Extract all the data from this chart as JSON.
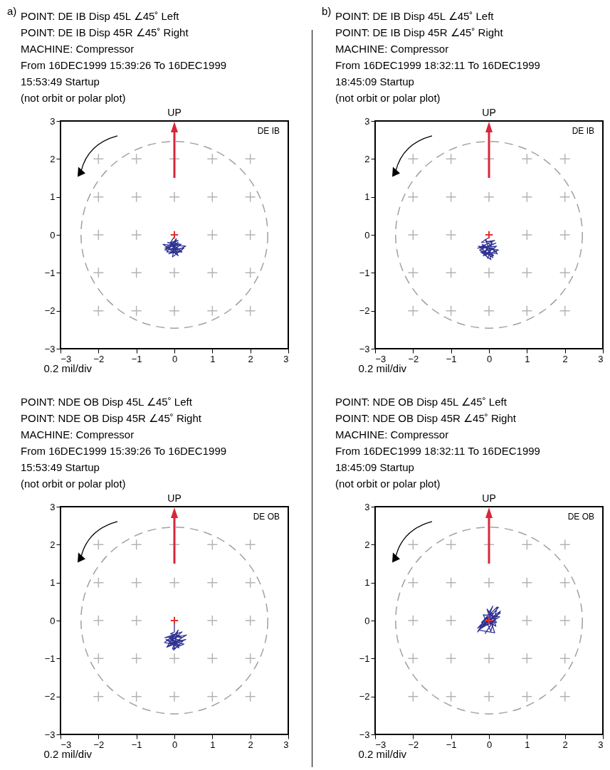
{
  "chart_data": [
    {
      "type": "line",
      "title": "POINT: DE IB Disp 45L  ∠45˚ Left\nPOINT: DE IB Disp 45R  ∠45˚ Right\nMACHINE:  Compressor\nFrom 16DEC1999  15:39:26 To 16DEC1999\n15:53:49 Startup\n(not orbit or polar plot)",
      "xlabel": "0.2 mil/div",
      "annotations": [
        "UP",
        "DE IB",
        "a)"
      ],
      "xlim": [
        -3,
        3
      ],
      "ylim": [
        -3,
        3
      ],
      "xticks": [
        -3,
        -2,
        -1,
        0,
        1,
        2,
        3
      ],
      "yticks": [
        -3,
        -2,
        -1,
        0,
        1,
        2,
        3
      ],
      "series": [
        {
          "type": "line",
          "line_style": "solid",
          "color": "#2e3192",
          "x": [
            0,
            -0.1,
            0.1,
            -0.2,
            0.15,
            -0.25,
            0.2,
            -0.15,
            0.3,
            -0.3,
            0.1,
            -0.1,
            0.2,
            -0.2,
            0.05,
            -0.05,
            0.25,
            -0.25,
            0.1,
            -0.15,
            0.05,
            0,
            -0.1,
            0.12,
            -0.18,
            0.18,
            -0.08,
            0.02
          ],
          "values": [
            -0.05,
            -0.2,
            -0.15,
            -0.3,
            -0.25,
            -0.35,
            -0.4,
            -0.5,
            -0.3,
            -0.25,
            -0.55,
            -0.2,
            -0.45,
            -0.45,
            -0.1,
            -0.58,
            -0.35,
            -0.4,
            -0.2,
            -0.35,
            -0.5,
            -0.3,
            -0.4,
            -0.3,
            -0.2,
            -0.25,
            -0.45,
            -0.35
          ]
        },
        {
          "type": "scatter",
          "marker": "cross",
          "color": "#e0312f",
          "x": [
            0
          ],
          "values": [
            0
          ]
        }
      ]
    },
    {
      "type": "line",
      "title": "POINT: DE IB Disp 45L  ∠45˚ Left\nPOINT: DE IB Disp 45R  ∠45˚ Right\nMACHINE:  Compressor\nFrom 16DEC1999  18:32:11 To 16DEC1999\n18:45:09 Startup\n(not orbit or polar plot)",
      "xlabel": "0.2 mil/div",
      "annotations": [
        "UP",
        "DE IB",
        "b)"
      ],
      "xlim": [
        -3,
        3
      ],
      "ylim": [
        -3,
        3
      ],
      "xticks": [
        -3,
        -2,
        -1,
        0,
        1,
        2,
        3
      ],
      "yticks": [
        -3,
        -2,
        -1,
        0,
        1,
        2,
        3
      ],
      "series": [
        {
          "type": "line",
          "line_style": "solid",
          "color": "#2e3192",
          "x": [
            -0.02,
            -0.2,
            0.15,
            -0.3,
            0.2,
            -0.15,
            0.25,
            -0.28,
            0.1,
            -0.1,
            0.22,
            -0.22,
            0.05,
            -0.05,
            0.18,
            -0.25,
            0.12,
            -0.18,
            0.2,
            -0.12,
            0.08,
            -0.03,
            -0.2,
            0.15,
            -0.1,
            0.02
          ],
          "values": [
            -0.08,
            -0.2,
            -0.15,
            -0.35,
            -0.3,
            -0.55,
            -0.4,
            -0.3,
            -0.6,
            -0.12,
            -0.5,
            -0.45,
            -0.65,
            -0.3,
            -0.22,
            -0.4,
            -0.55,
            -0.25,
            -0.45,
            -0.5,
            -0.2,
            -0.62,
            -0.3,
            -0.35,
            -0.42,
            -0.28
          ]
        },
        {
          "type": "scatter",
          "marker": "cross",
          "color": "#e0312f",
          "x": [
            0
          ],
          "values": [
            0
          ]
        }
      ]
    },
    {
      "type": "line",
      "title": "POINT: NDE OB Disp 45L  ∠45˚ Left\nPOINT: NDE OB Disp 45R  ∠45˚ Right\nMACHINE:  Compressor\nFrom 16DEC1999  15:39:26 To 16DEC1999\n15:53:49 Startup\n(not orbit or polar plot)",
      "xlabel": "0.2 mil/div",
      "annotations": [
        "UP",
        "DE OB"
      ],
      "xlim": [
        -3,
        3
      ],
      "ylim": [
        -3,
        3
      ],
      "xticks": [
        -3,
        -2,
        -1,
        0,
        1,
        2,
        3
      ],
      "yticks": [
        -3,
        -2,
        -1,
        0,
        1,
        2,
        3
      ],
      "series": [
        {
          "type": "line",
          "line_style": "solid",
          "color": "#2e3192",
          "x": [
            0,
            0,
            -0.1,
            0.15,
            -0.25,
            0.2,
            -0.15,
            0.3,
            -0.2,
            0.1,
            -0.05,
            0.25,
            -0.22,
            0.12,
            -0.1,
            0.2,
            -0.18,
            0.05,
            0.32,
            -0.12,
            0.15,
            -0.26,
            0.08,
            -0.02,
            0.22,
            -0.15,
            0.02
          ],
          "values": [
            0,
            -0.3,
            -0.35,
            -0.4,
            -0.45,
            -0.3,
            -0.6,
            -0.5,
            -0.7,
            -0.25,
            -0.75,
            -0.62,
            -0.5,
            -0.72,
            -0.4,
            -0.45,
            -0.68,
            -0.55,
            -0.38,
            -0.48,
            -0.66,
            -0.58,
            -0.3,
            -0.78,
            -0.55,
            -0.42,
            -0.6
          ]
        },
        {
          "type": "scatter",
          "marker": "cross",
          "color": "#e0312f",
          "x": [
            0
          ],
          "values": [
            0
          ]
        }
      ]
    },
    {
      "type": "line",
      "title": "POINT: NDE OB Disp 45L  ∠45˚ Left\nPOINT: NDE OB Disp 45R  ∠45˚ Right\nMACHINE:  Compressor\nFrom 16DEC1999  18:32:11 To 16DEC1999\n18:45:09 Startup\n(not orbit or polar plot)",
      "xlabel": "0.2 mil/div",
      "annotations": [
        "UP",
        "DE OB"
      ],
      "xlim": [
        -3,
        3
      ],
      "ylim": [
        -3,
        3
      ],
      "xticks": [
        -3,
        -2,
        -1,
        0,
        1,
        2,
        3
      ],
      "yticks": [
        -3,
        -2,
        -1,
        0,
        1,
        2,
        3
      ],
      "series": [
        {
          "type": "line",
          "line_style": "solid",
          "color": "#2e3192",
          "x": [
            0,
            -0.2,
            0.25,
            -0.3,
            0.1,
            -0.1,
            0.3,
            -0.25,
            0.2,
            -0.05,
            0.15,
            -0.28,
            0.28,
            -0.15,
            0.05,
            0.22,
            -0.2,
            0.12,
            -0.1,
            0.3,
            -0.3,
            0.08,
            0.18,
            -0.12,
            0.02
          ],
          "values": [
            0,
            -0.2,
            0.35,
            -0.3,
            0.38,
            -0.1,
            0.2,
            -0.15,
            -0.05,
            0.3,
            -0.32,
            -0.25,
            0.1,
            0.15,
            -0.28,
            0.36,
            -0.05,
            0,
            -0.34,
            0.25,
            -0.2,
            0.2,
            -0.15,
            0.05,
            -0.1
          ]
        },
        {
          "type": "scatter",
          "marker": "cross",
          "color": "#e0312f",
          "x": [
            0
          ],
          "values": [
            0
          ]
        }
      ]
    }
  ]
}
